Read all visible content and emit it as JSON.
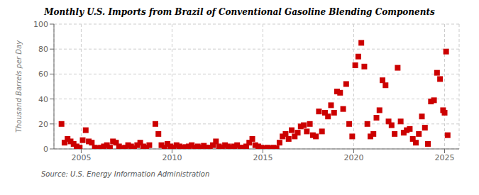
{
  "chart_data": {
    "type": "scatter",
    "title": "Monthly U.S. Imports from Brazil of Conventional Gasoline Blending Components",
    "ylabel": "Thousand Barrels per Day",
    "annotation": "Source: U.S. Energy Information Administration",
    "color": "#cc0000",
    "marker": "square",
    "grid": true,
    "xlim": [
      2003.5,
      2025.8
    ],
    "xticks": [
      2005,
      2010,
      2015,
      2020,
      2025
    ],
    "ylim": [
      0,
      100
    ],
    "yticks": [
      0,
      20,
      40,
      60,
      80,
      100
    ],
    "x": [
      2003.917,
      2004.083,
      2004.25,
      2004.417,
      2004.583,
      2004.75,
      2004.917,
      2005.083,
      2005.25,
      2005.417,
      2005.583,
      2005.75,
      2005.917,
      2006.083,
      2006.25,
      2006.417,
      2006.583,
      2006.75,
      2006.917,
      2007.083,
      2007.25,
      2007.417,
      2007.583,
      2007.75,
      2007.917,
      2008.083,
      2008.25,
      2008.417,
      2008.583,
      2008.75,
      2009.083,
      2009.25,
      2009.417,
      2009.583,
      2009.75,
      2009.917,
      2010.083,
      2010.25,
      2010.417,
      2010.583,
      2010.75,
      2010.917,
      2011.083,
      2011.25,
      2011.417,
      2011.583,
      2011.75,
      2011.917,
      2012.083,
      2012.25,
      2012.417,
      2012.583,
      2012.75,
      2012.917,
      2013.083,
      2013.25,
      2013.417,
      2013.583,
      2013.75,
      2013.917,
      2014.083,
      2014.25,
      2014.417,
      2014.583,
      2014.75,
      2014.917,
      2015.083,
      2015.25,
      2015.417,
      2015.583,
      2015.75,
      2015.917,
      2016.083,
      2016.25,
      2016.417,
      2016.583,
      2016.75,
      2016.917,
      2017.083,
      2017.25,
      2017.417,
      2017.583,
      2017.75,
      2017.917,
      2018.083,
      2018.25,
      2018.417,
      2018.583,
      2018.75,
      2018.917,
      2019.083,
      2019.25,
      2019.417,
      2019.583,
      2019.75,
      2019.917,
      2020.083,
      2020.25,
      2020.417,
      2020.583,
      2020.75,
      2020.917,
      2021.083,
      2021.25,
      2021.417,
      2021.583,
      2021.75,
      2021.917,
      2022.083,
      2022.25,
      2022.417,
      2022.583,
      2022.75,
      2022.917,
      2023.083,
      2023.25,
      2023.417,
      2023.583,
      2023.75,
      2023.917,
      2024.083,
      2024.25,
      2024.417,
      2024.583,
      2024.75,
      2024.917,
      2025.0,
      2025.083,
      2025.167
    ],
    "values": [
      20.0,
      5.0,
      8.0,
      6.0,
      4.0,
      2.0,
      1.0,
      7.0,
      15.0,
      6.0,
      5.0,
      1.0,
      0.5,
      1.0,
      2.0,
      3.0,
      1.0,
      6.0,
      5.0,
      2.0,
      0.5,
      1.0,
      3.0,
      2.0,
      0.5,
      3.0,
      5.0,
      2.0,
      1.0,
      3.0,
      20.0,
      12.0,
      3.0,
      1.0,
      4.0,
      2.0,
      1.0,
      3.0,
      2.0,
      1.0,
      1.5,
      2.0,
      3.0,
      1.0,
      2.0,
      1.0,
      2.5,
      1.0,
      1.0,
      3.0,
      6.0,
      2.0,
      1.0,
      3.0,
      2.0,
      1.0,
      2.0,
      3.0,
      1.0,
      1.0,
      2.0,
      5.0,
      8.0,
      3.0,
      2.0,
      1.0,
      0.5,
      1.0,
      0.5,
      1.0,
      0.5,
      5.0,
      10.0,
      12.0,
      8.0,
      15.0,
      10.0,
      13.0,
      18.0,
      19.0,
      14.0,
      20.0,
      11.0,
      10.0,
      30.0,
      14.0,
      29.0,
      26.0,
      35.0,
      29.0,
      46.0,
      45.0,
      32.0,
      52.0,
      20.0,
      10.0,
      67.0,
      74.0,
      85.0,
      66.0,
      20.0,
      10.0,
      12.0,
      25.0,
      31.0,
      55.0,
      51.0,
      22.0,
      19.0,
      12.0,
      65.0,
      22.0,
      13.0,
      15.0,
      16.0,
      8.0,
      5.0,
      12.0,
      26.0,
      17.0,
      4.0,
      38.0,
      39.0,
      61.0,
      56.0,
      31.0,
      29.0,
      78.0,
      11.0
    ]
  }
}
